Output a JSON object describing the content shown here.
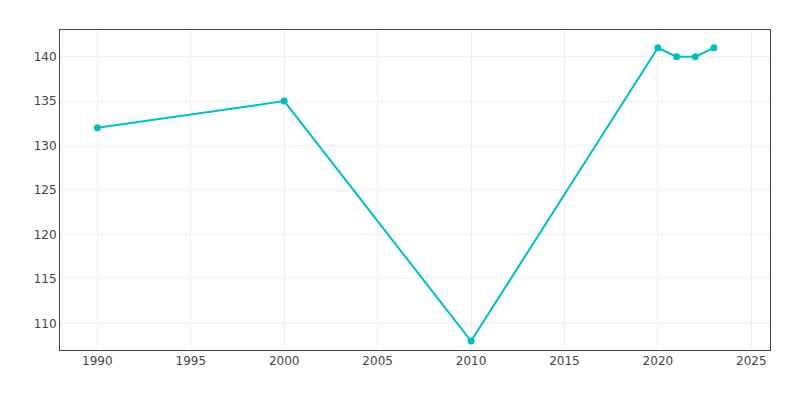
{
  "chart_data": {
    "type": "line",
    "x": [
      1990,
      2000,
      2010,
      2020,
      2021,
      2022,
      2023
    ],
    "values": [
      132,
      135,
      108,
      141,
      140,
      140,
      141
    ],
    "color": "#00BFBF",
    "marker": "circle",
    "xlim": [
      1988,
      2026
    ],
    "ylim": [
      107,
      143
    ],
    "xticks": [
      1990,
      1995,
      2000,
      2005,
      2010,
      2015,
      2020,
      2025
    ],
    "yticks": [
      110,
      115,
      120,
      125,
      130,
      135,
      140
    ],
    "grid": true
  }
}
